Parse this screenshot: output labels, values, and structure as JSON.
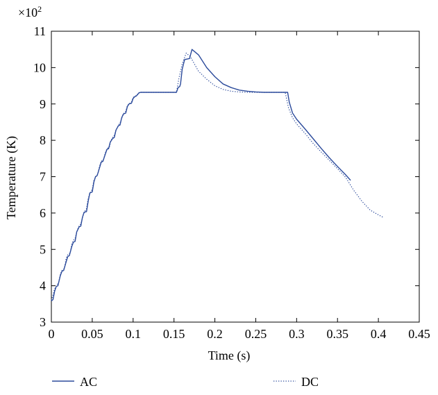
{
  "chart_data": {
    "type": "line",
    "xlabel": "Time (s)",
    "ylabel": "Temperature (K)",
    "y_multiplier": "×10",
    "y_multiplier_exp": "2",
    "xlim": [
      0,
      0.45
    ],
    "ylim": [
      3,
      11
    ],
    "x_ticks": [
      0,
      0.05,
      0.1,
      0.15,
      0.2,
      0.25,
      0.3,
      0.35,
      0.4,
      0.45
    ],
    "x_tick_labels": [
      "0",
      "0.05",
      "0.1",
      "0.15",
      "0.2",
      "0.25",
      "0.3",
      "0.35",
      "0.4",
      "0.45"
    ],
    "y_ticks": [
      3,
      4,
      5,
      6,
      7,
      8,
      9,
      10,
      11
    ],
    "y_tick_labels": [
      "3",
      "4",
      "5",
      "6",
      "7",
      "8",
      "9",
      "10",
      "11"
    ],
    "grid": false,
    "legend_placement": "bottom",
    "series": [
      {
        "name": "AC",
        "color": "#2b4a9b",
        "style": "solid",
        "x": [
          0.0,
          0.002,
          0.004,
          0.006,
          0.008,
          0.011,
          0.013,
          0.015,
          0.018,
          0.02,
          0.022,
          0.025,
          0.027,
          0.029,
          0.031,
          0.034,
          0.036,
          0.038,
          0.04,
          0.043,
          0.045,
          0.047,
          0.05,
          0.052,
          0.054,
          0.056,
          0.059,
          0.061,
          0.063,
          0.066,
          0.068,
          0.07,
          0.072,
          0.075,
          0.077,
          0.079,
          0.082,
          0.084,
          0.086,
          0.088,
          0.091,
          0.093,
          0.095,
          0.098,
          0.1,
          0.102,
          0.104,
          0.107,
          0.109,
          0.111,
          0.114,
          0.116,
          0.12,
          0.153,
          0.155,
          0.157,
          0.158,
          0.16,
          0.163,
          0.165,
          0.167,
          0.169,
          0.172,
          0.18,
          0.19,
          0.2,
          0.21,
          0.22,
          0.23,
          0.24,
          0.25,
          0.26,
          0.289,
          0.291,
          0.295,
          0.3,
          0.31,
          0.32,
          0.33,
          0.34,
          0.35,
          0.36,
          0.366
        ],
        "y": [
          3.58,
          3.62,
          3.85,
          3.98,
          4.0,
          4.28,
          4.4,
          4.42,
          4.65,
          4.8,
          4.83,
          5.08,
          5.2,
          5.22,
          5.48,
          5.62,
          5.64,
          5.88,
          6.02,
          6.04,
          6.32,
          6.55,
          6.58,
          6.85,
          7.0,
          7.03,
          7.25,
          7.4,
          7.42,
          7.62,
          7.75,
          7.77,
          7.95,
          8.05,
          8.08,
          8.28,
          8.4,
          8.42,
          8.62,
          8.72,
          8.75,
          8.93,
          9.0,
          9.02,
          9.15,
          9.2,
          9.22,
          9.3,
          9.32,
          9.32,
          9.32,
          9.32,
          9.32,
          9.32,
          9.45,
          9.48,
          9.55,
          9.95,
          10.22,
          10.23,
          10.24,
          10.25,
          10.5,
          10.35,
          10.0,
          9.75,
          9.55,
          9.45,
          9.38,
          9.35,
          9.33,
          9.32,
          9.32,
          9.05,
          8.75,
          8.58,
          8.32,
          8.05,
          7.78,
          7.52,
          7.28,
          7.05,
          6.9
        ]
      },
      {
        "name": "DC",
        "color": "#2b4a9b",
        "style": "dotted",
        "x": [
          0.0,
          0.002,
          0.004,
          0.006,
          0.009,
          0.011,
          0.013,
          0.016,
          0.018,
          0.02,
          0.023,
          0.025,
          0.027,
          0.029,
          0.032,
          0.034,
          0.036,
          0.039,
          0.041,
          0.043,
          0.045,
          0.048,
          0.05,
          0.052,
          0.055,
          0.057,
          0.059,
          0.061,
          0.064,
          0.066,
          0.068,
          0.071,
          0.073,
          0.075,
          0.077,
          0.08,
          0.082,
          0.084,
          0.087,
          0.089,
          0.091,
          0.093,
          0.096,
          0.098,
          0.1,
          0.103,
          0.105,
          0.107,
          0.109,
          0.112,
          0.116,
          0.153,
          0.156,
          0.16,
          0.165,
          0.17,
          0.18,
          0.19,
          0.2,
          0.21,
          0.22,
          0.23,
          0.24,
          0.25,
          0.26,
          0.286,
          0.29,
          0.295,
          0.3,
          0.31,
          0.32,
          0.33,
          0.34,
          0.35,
          0.36,
          0.37,
          0.38,
          0.39,
          0.4,
          0.406
        ],
        "y": [
          3.6,
          3.75,
          3.92,
          3.98,
          4.1,
          4.32,
          4.42,
          4.48,
          4.75,
          4.85,
          4.9,
          5.15,
          5.25,
          5.3,
          5.55,
          5.65,
          5.7,
          5.95,
          6.05,
          6.12,
          6.4,
          6.58,
          6.65,
          6.9,
          7.02,
          7.08,
          7.3,
          7.42,
          7.48,
          7.66,
          7.77,
          7.82,
          8.0,
          8.08,
          8.14,
          8.32,
          8.42,
          8.48,
          8.66,
          8.75,
          8.8,
          8.96,
          9.02,
          9.06,
          9.18,
          9.22,
          9.26,
          9.31,
          9.32,
          9.32,
          9.32,
          9.32,
          9.7,
          10.1,
          10.4,
          10.3,
          9.9,
          9.68,
          9.5,
          9.4,
          9.35,
          9.33,
          9.32,
          9.32,
          9.32,
          9.32,
          8.9,
          8.62,
          8.45,
          8.2,
          7.92,
          7.68,
          7.45,
          7.22,
          6.98,
          6.62,
          6.32,
          6.08,
          5.95,
          5.88
        ]
      }
    ]
  }
}
